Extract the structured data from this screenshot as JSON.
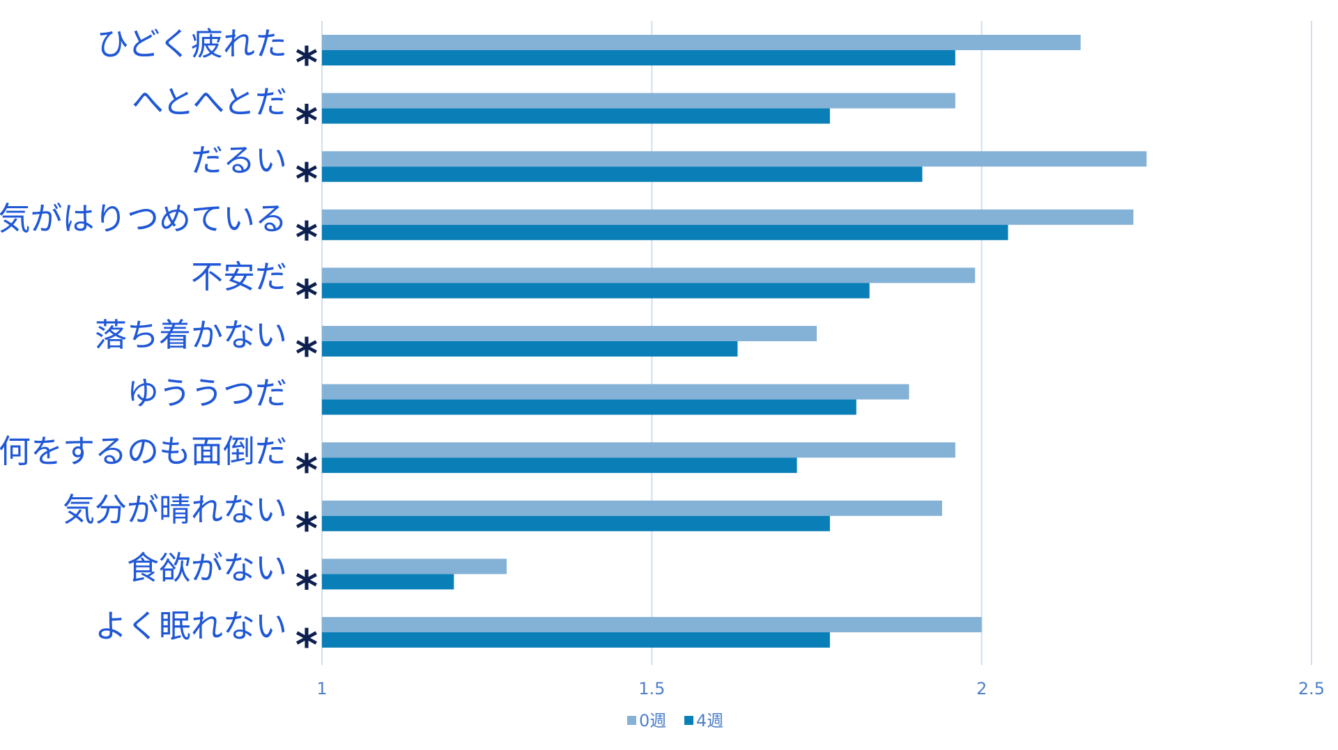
{
  "chart_data": {
    "type": "bar",
    "orientation": "horizontal",
    "categories": [
      "ひどく疲れた",
      "へとへとだ",
      "だるい",
      "気がはりつめている",
      "不安だ",
      "落ち着かない",
      "ゆううつだ",
      "何をするのも面倒だ",
      "気分が晴れない",
      "食欲がない",
      "よく眠れない"
    ],
    "significance": [
      "*",
      "*",
      "*",
      "*",
      "*",
      "*",
      "",
      "*",
      "*",
      "*",
      "*"
    ],
    "series": [
      {
        "name": "0週",
        "color": "#84b1d6",
        "values": [
          2.15,
          1.96,
          2.25,
          2.23,
          1.99,
          1.75,
          1.89,
          1.96,
          1.94,
          1.28,
          2.0
        ]
      },
      {
        "name": "4週",
        "color": "#0a7fb7",
        "values": [
          1.96,
          1.77,
          1.91,
          2.04,
          1.83,
          1.63,
          1.81,
          1.72,
          1.77,
          1.2,
          1.77
        ]
      }
    ],
    "xlim": [
      1,
      2.5
    ],
    "xticks": [
      "1",
      "1.5",
      "2",
      "2.5"
    ],
    "grid": true,
    "gridColor": "#cfdff0",
    "legend": "bottom"
  }
}
